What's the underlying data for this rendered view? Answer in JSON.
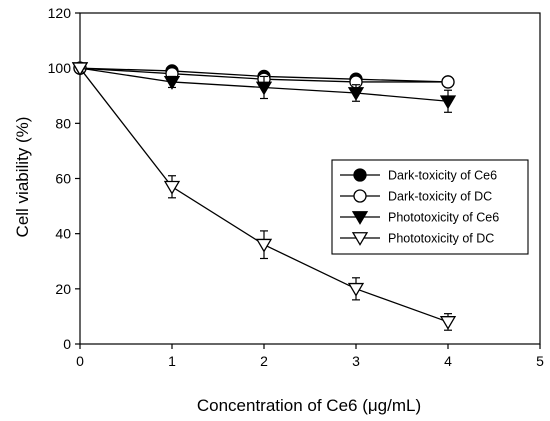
{
  "chart_data": {
    "type": "line",
    "title": "",
    "xlabel": "Concentration of Ce6 (μg/mL)",
    "ylabel": "Cell viability (%)",
    "xlim": [
      0,
      5
    ],
    "ylim": [
      0,
      120
    ],
    "xticks": [
      "0",
      "1",
      "2",
      "3",
      "4",
      "5"
    ],
    "yticks": [
      "0",
      "20",
      "40",
      "60",
      "80",
      "100",
      "120"
    ],
    "grid": false,
    "legend_position": "center-right",
    "series": [
      {
        "name": "Dark-toxicity of Ce6",
        "marker": "circle-filled",
        "x": [
          0,
          1,
          2,
          3,
          4
        ],
        "y": [
          100,
          99,
          97,
          96,
          95
        ],
        "err": [
          0,
          1,
          1,
          1,
          1
        ]
      },
      {
        "name": "Dark-toxicity of DC",
        "marker": "circle-open",
        "x": [
          0,
          1,
          2,
          3,
          4
        ],
        "y": [
          100,
          98,
          96,
          95,
          95
        ],
        "err": [
          0,
          1,
          1,
          1,
          1
        ]
      },
      {
        "name": "Phototoxicity of Ce6",
        "marker": "triangle-down-filled",
        "x": [
          0,
          1,
          2,
          3,
          4
        ],
        "y": [
          100,
          95,
          93,
          91,
          88
        ],
        "err": [
          0,
          2,
          4,
          3,
          4
        ]
      },
      {
        "name": "Phototoxicity of DC",
        "marker": "triangle-down-open",
        "x": [
          0,
          1,
          2,
          3,
          4
        ],
        "y": [
          100,
          57,
          36,
          20,
          8
        ],
        "err": [
          0,
          4,
          5,
          4,
          3
        ]
      }
    ]
  }
}
